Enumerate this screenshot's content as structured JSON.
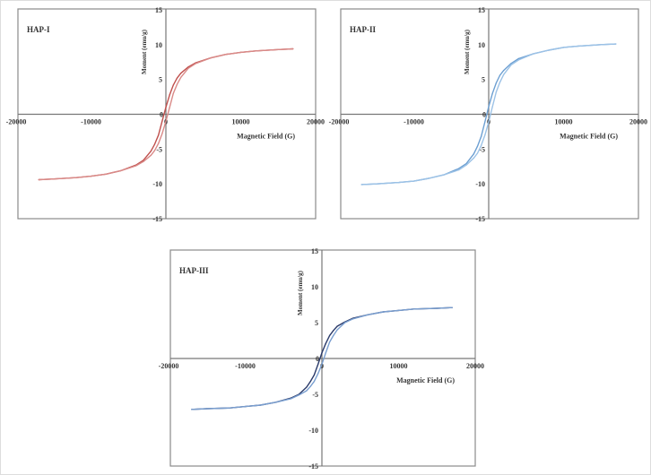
{
  "chart_data": [
    {
      "type": "line",
      "title": "HAP-I",
      "xlabel": "Magnetic Field (G)",
      "ylabel": "Moment (emu/g)",
      "xlim": [
        -20000,
        20000
      ],
      "ylim": [
        -15,
        15
      ],
      "xticks": [
        -20000,
        -10000,
        0,
        10000,
        20000
      ],
      "xtick_labels": [
        "-20000",
        "-10000",
        "0",
        "10000",
        "20000"
      ],
      "yticks": [
        -15,
        -10,
        -5,
        0,
        5,
        10,
        15
      ],
      "ytick_labels": [
        "-15",
        "-10",
        "-5",
        "0",
        "5",
        "10",
        "15"
      ],
      "grid": false,
      "color": "#c0504d",
      "x": [
        -17000,
        -15000,
        -12000,
        -10000,
        -8000,
        -6000,
        -4000,
        -3000,
        -2000,
        -1500,
        -1000,
        -500,
        0,
        500,
        1000,
        1500,
        2000,
        3000,
        4000,
        6000,
        8000,
        10000,
        12000,
        15000,
        17000
      ],
      "series": [
        {
          "values": [
            -9.4,
            -9.3,
            -9.1,
            -8.9,
            -8.6,
            -8.1,
            -7.3,
            -6.6,
            -5.3,
            -4.3,
            -3.0,
            -1.0,
            1.0,
            2.8,
            4.2,
            5.2,
            5.9,
            6.8,
            7.4,
            8.1,
            8.6,
            8.9,
            9.1,
            9.3,
            9.4
          ]
        },
        {
          "values": [
            -9.4,
            -9.3,
            -9.1,
            -8.9,
            -8.6,
            -8.1,
            -7.4,
            -6.8,
            -5.9,
            -5.2,
            -4.2,
            -2.8,
            -1.0,
            1.0,
            3.0,
            4.3,
            5.3,
            6.6,
            7.3,
            8.1,
            8.6,
            8.9,
            9.1,
            9.3,
            9.4
          ]
        }
      ]
    },
    {
      "type": "line",
      "title": "HAP-II",
      "xlabel": "Magnetic Field (G)",
      "ylabel": "Moment (emu/g)",
      "xlim": [
        -20000,
        20000
      ],
      "ylim": [
        -15,
        15
      ],
      "xticks": [
        -20000,
        -10000,
        0,
        10000,
        20000
      ],
      "xtick_labels": [
        "-20000",
        "-10000",
        "0",
        "10000",
        "20000"
      ],
      "yticks": [
        -15,
        -10,
        -5,
        0,
        5,
        10,
        15
      ],
      "ytick_labels": [
        "-15",
        "-10",
        "-5",
        "0",
        "5",
        "10",
        "15"
      ],
      "grid": false,
      "color": "#6c9fd2",
      "x": [
        -17000,
        -15000,
        -12000,
        -10000,
        -8000,
        -6000,
        -4000,
        -3000,
        -2000,
        -1500,
        -1000,
        -500,
        0,
        500,
        1000,
        1500,
        2000,
        3000,
        4000,
        6000,
        8000,
        10000,
        12000,
        15000,
        17000
      ],
      "series": [
        {
          "values": [
            -10.1,
            -10.0,
            -9.8,
            -9.6,
            -9.2,
            -8.7,
            -7.8,
            -7.1,
            -5.7,
            -4.6,
            -3.2,
            -1.1,
            1.1,
            3.0,
            4.5,
            5.6,
            6.3,
            7.3,
            8.0,
            8.7,
            9.2,
            9.6,
            9.8,
            10.0,
            10.1
          ]
        },
        {
          "values": [
            -10.1,
            -10.0,
            -9.8,
            -9.6,
            -9.2,
            -8.7,
            -8.0,
            -7.3,
            -6.3,
            -5.6,
            -4.5,
            -3.0,
            -1.1,
            1.1,
            3.2,
            4.6,
            5.7,
            7.1,
            7.8,
            8.7,
            9.2,
            9.6,
            9.8,
            10.0,
            10.1
          ]
        }
      ]
    },
    {
      "type": "line",
      "title": "HAP-III",
      "xlabel": "Magnetic Field (G)",
      "ylabel": "Moment (emu/g)",
      "xlim": [
        -20000,
        20000
      ],
      "ylim": [
        -15,
        15
      ],
      "xticks": [
        -20000,
        -10000,
        0,
        10000,
        20000
      ],
      "xtick_labels": [
        "-20000",
        "-10000",
        "0",
        "10000",
        "20000"
      ],
      "yticks": [
        -15,
        -10,
        -5,
        0,
        5,
        10,
        15
      ],
      "ytick_labels": [
        "-15",
        "-10",
        "-5",
        "0",
        "5",
        "10",
        "15"
      ],
      "grid": false,
      "color": "#2a3a6a",
      "x": [
        -17000,
        -15000,
        -12000,
        -10000,
        -8000,
        -6000,
        -4000,
        -3000,
        -2000,
        -1500,
        -1000,
        -500,
        0,
        500,
        1000,
        1500,
        2000,
        3000,
        4000,
        6000,
        8000,
        10000,
        12000,
        15000,
        17000
      ],
      "series": [
        {
          "values": [
            -7.1,
            -7.0,
            -6.9,
            -6.7,
            -6.5,
            -6.1,
            -5.5,
            -5.0,
            -4.0,
            -3.2,
            -2.3,
            -0.8,
            0.8,
            2.1,
            3.2,
            3.9,
            4.5,
            5.1,
            5.6,
            6.1,
            6.5,
            6.7,
            6.9,
            7.0,
            7.1
          ]
        },
        {
          "values": [
            -7.1,
            -7.0,
            -6.9,
            -6.7,
            -6.5,
            -6.1,
            -5.6,
            -5.1,
            -4.5,
            -3.9,
            -3.2,
            -2.1,
            -0.8,
            0.8,
            2.3,
            3.2,
            4.0,
            5.0,
            5.5,
            6.1,
            6.5,
            6.7,
            6.9,
            7.0,
            7.1
          ]
        }
      ]
    }
  ]
}
